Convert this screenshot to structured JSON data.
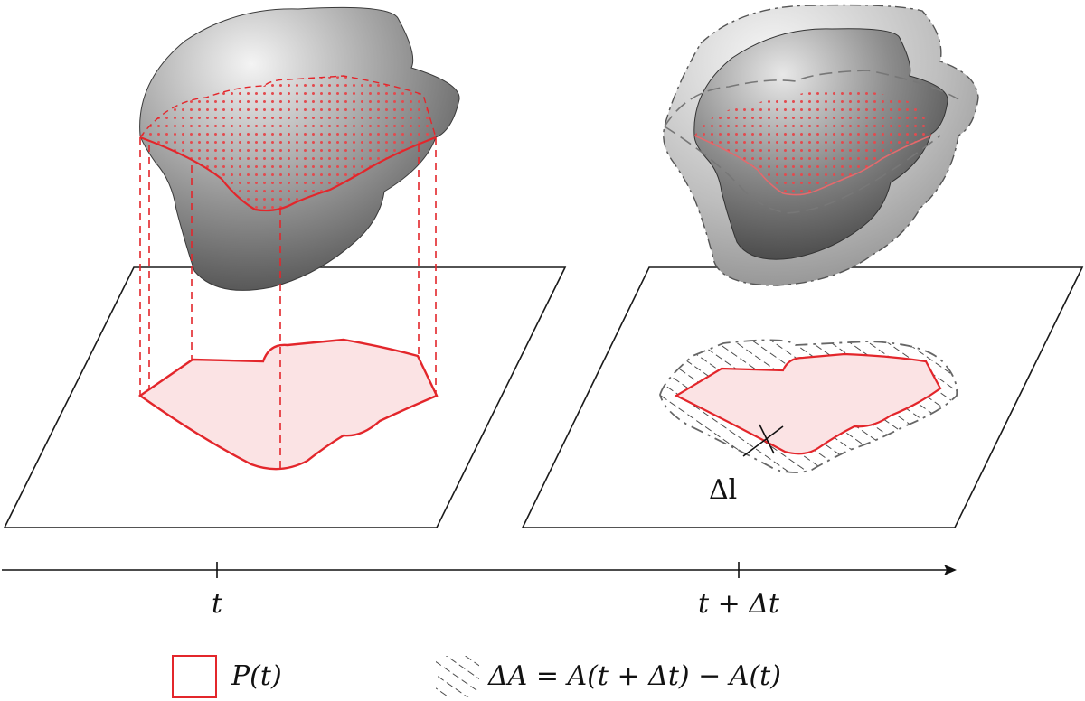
{
  "timeline": {
    "tick_t": "t",
    "tick_t_dt": "t + Δt"
  },
  "annotation": {
    "delta_l": "Δl"
  },
  "legend": {
    "perimeter_label": "P(t)",
    "area_change_label": "ΔA = A(t + Δt) − A(t)"
  },
  "colors": {
    "perimeter": "#e3262b",
    "area_fill": "#fbe3e4",
    "body_dark": "#555555",
    "body_light": "#f2f2f2"
  }
}
